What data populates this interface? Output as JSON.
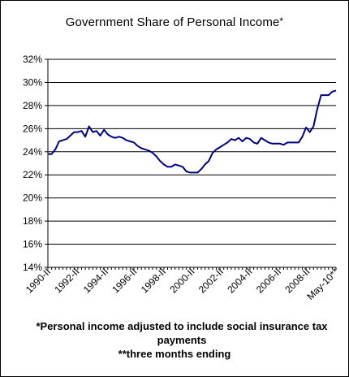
{
  "chart_data": {
    "type": "line",
    "title": "Government Share of  Personal Income",
    "title_mark": "*",
    "xlabel": "",
    "ylabel": "",
    "ylim": [
      14,
      32
    ],
    "y_ticks": [
      "14%",
      "16%",
      "18%",
      "20%",
      "22%",
      "24%",
      "26%",
      "28%",
      "30%",
      "32%"
    ],
    "x_ticks": [
      "1990-II",
      "1992-II",
      "1994-II",
      "1996-II",
      "1998-II",
      "2000-II",
      "2002-II",
      "2004-II",
      "2006-II",
      "2008-II",
      "May-10**"
    ],
    "grid": "horizontal",
    "legend": "none",
    "line_color": "#000080",
    "series": [
      {
        "values": [
          23.8,
          23.8,
          24.2,
          24.9,
          25.0,
          25.1,
          25.4,
          25.7,
          25.7,
          25.8,
          25.3,
          26.2,
          25.7,
          25.8,
          25.4,
          25.9,
          25.5,
          25.3,
          25.2,
          25.3,
          25.2,
          25.0,
          24.9,
          24.8,
          24.5,
          24.3,
          24.2,
          24.1,
          23.9,
          23.6,
          23.2,
          22.9,
          22.7,
          22.7,
          22.9,
          22.8,
          22.7,
          22.3,
          22.2,
          22.2,
          22.2,
          22.5,
          22.9,
          23.2,
          23.9,
          24.2,
          24.4,
          24.6,
          24.8,
          25.1,
          25.0,
          25.2,
          24.9,
          25.2,
          25.1,
          24.8,
          24.7,
          25.2,
          25.0,
          24.8,
          24.7,
          24.7,
          24.7,
          24.6,
          24.8,
          24.8,
          24.8,
          24.8,
          25.3,
          26.1,
          25.7,
          26.2,
          27.7,
          28.9,
          28.9,
          28.9,
          29.2,
          29.3
        ]
      }
    ]
  },
  "notes": {
    "line1": "*Personal income adjusted to include social insurance tax payments",
    "line2": "**three months ending"
  }
}
